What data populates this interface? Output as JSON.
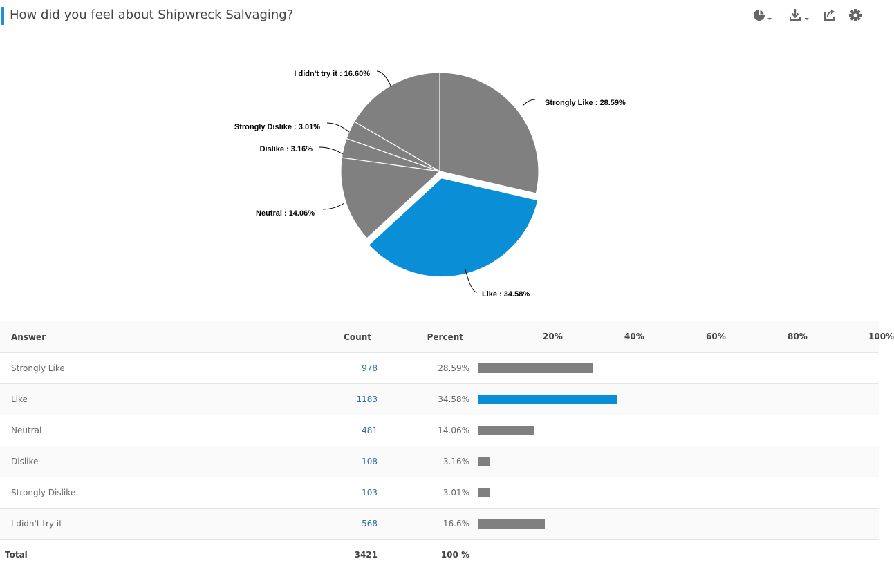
{
  "header": {
    "title": "How did you feel about Shipwreck Salvaging?",
    "tools": [
      {
        "name": "chart-type-icon"
      },
      {
        "name": "download-icon"
      },
      {
        "name": "share-icon"
      },
      {
        "name": "gear-icon"
      }
    ]
  },
  "colors": {
    "slice": "#808080",
    "highlight": "#0a8fd6",
    "accent": "#1f8fd6"
  },
  "chart_data": {
    "type": "pie",
    "title": "How did you feel about Shipwreck Salvaging?",
    "categories": [
      "Strongly Like",
      "Like",
      "Neutral",
      "Dislike",
      "Strongly Dislike",
      "I didn't try it"
    ],
    "values": [
      28.59,
      34.58,
      14.06,
      3.16,
      3.01,
      16.6
    ],
    "labels": [
      "Strongly Like : 28.59%",
      "Like : 34.58%",
      "Neutral : 14.06%",
      "Dislike : 3.16%",
      "Strongly Dislike : 3.01%",
      "I didn't try it : 16.60%"
    ],
    "highlighted": "Like"
  },
  "table": {
    "headers": {
      "answer": "Answer",
      "count": "Count",
      "percent": "Percent"
    },
    "scale": [
      "20%",
      "40%",
      "60%",
      "80%",
      "100%"
    ],
    "rows": [
      {
        "answer": "Strongly Like",
        "count": "978",
        "percent": "28.59%",
        "value": 28.59
      },
      {
        "answer": "Like",
        "count": "1183",
        "percent": "34.58%",
        "value": 34.58
      },
      {
        "answer": "Neutral",
        "count": "481",
        "percent": "14.06%",
        "value": 14.06
      },
      {
        "answer": "Dislike",
        "count": "108",
        "percent": "3.16%",
        "value": 3.16
      },
      {
        "answer": "Strongly Dislike",
        "count": "103",
        "percent": "3.01%",
        "value": 3.01
      },
      {
        "answer": "I didn't try it",
        "count": "568",
        "percent": "16.6%",
        "value": 16.6
      }
    ],
    "total": {
      "label": "Total",
      "count": "3421",
      "percent": "100 %"
    }
  }
}
